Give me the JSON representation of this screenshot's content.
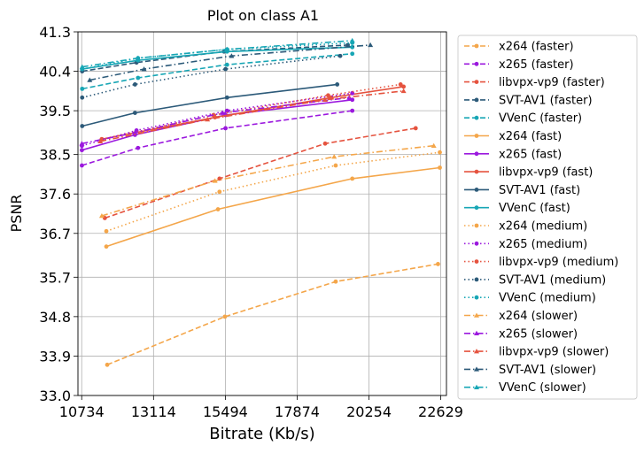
{
  "chart_data": {
    "type": "line",
    "title": "Plot on class A1",
    "xlabel": "Bitrate (Kb/s)",
    "ylabel": "PSNR",
    "xlim": [
      10610,
      22820
    ],
    "ylim": [
      33.0,
      41.3
    ],
    "xticks": [
      10734,
      13114,
      15494,
      17874,
      20254,
      22629
    ],
    "xtick_labels": [
      "10734",
      "13114",
      "15494",
      "17874",
      "20254",
      "22629"
    ],
    "yticks": [
      33.0,
      33.9,
      34.8,
      35.7,
      36.7,
      37.6,
      38.5,
      39.5,
      40.4,
      41.3
    ],
    "ytick_labels": [
      "33.0",
      "33.9",
      "34.8",
      "35.7",
      "36.7",
      "37.6",
      "38.5",
      "39.5",
      "40.4",
      "41.3"
    ],
    "grid": true,
    "legend_position": "outside-right",
    "colors": {
      "x264": "#f4a64a",
      "x265": "#9b18de",
      "libvpx-vp9": "#e5533f",
      "SVT-AV1": "#2c5a79",
      "VVenC": "#17a6b5"
    },
    "series": [
      {
        "name": "x264 (faster)",
        "codec": "x264",
        "style": "dashed",
        "marker": "circle",
        "x": [
          11580,
          15480,
          19150,
          22540
        ],
        "y": [
          33.7,
          34.8,
          35.6,
          36.0
        ]
      },
      {
        "name": "x265 (faster)",
        "codec": "x265",
        "style": "dashed",
        "marker": "circle",
        "x": [
          10740,
          12600,
          15500,
          19700
        ],
        "y": [
          38.25,
          38.65,
          39.1,
          39.5
        ]
      },
      {
        "name": "libvpx-vp9 (faster)",
        "codec": "libvpx-vp9",
        "style": "dashed",
        "marker": "circle",
        "x": [
          11500,
          15300,
          18800,
          21800
        ],
        "y": [
          37.05,
          37.95,
          38.75,
          39.1
        ]
      },
      {
        "name": "SVT-AV1 (faster)",
        "codec": "SVT-AV1",
        "style": "dashed",
        "marker": "circle",
        "x": [
          10750,
          12550,
          15450,
          19550
        ],
        "y": [
          40.4,
          40.6,
          40.85,
          41.0
        ]
      },
      {
        "name": "VVenC (faster)",
        "codec": "VVenC",
        "style": "dashed",
        "marker": "circle",
        "x": [
          10750,
          12600,
          15550,
          19700
        ],
        "y": [
          40.0,
          40.25,
          40.55,
          40.8
        ]
      },
      {
        "name": "x264 (fast)",
        "codec": "x264",
        "style": "solid",
        "marker": "circle",
        "x": [
          11550,
          15250,
          19700,
          22600
        ],
        "y": [
          36.4,
          37.25,
          37.95,
          38.2
        ]
      },
      {
        "name": "x265 (fast)",
        "codec": "x265",
        "style": "solid",
        "marker": "circle",
        "x": [
          10740,
          12500,
          15500,
          19700
        ],
        "y": [
          38.6,
          38.95,
          39.4,
          39.75
        ]
      },
      {
        "name": "libvpx-vp9 (fast)",
        "codec": "libvpx-vp9",
        "style": "solid",
        "marker": "circle",
        "x": [
          11400,
          15150,
          19000,
          21400
        ],
        "y": [
          38.85,
          39.35,
          39.8,
          40.05
        ]
      },
      {
        "name": "SVT-AV1 (fast)",
        "codec": "SVT-AV1",
        "style": "solid",
        "marker": "circle",
        "x": [
          10750,
          12500,
          15550,
          19200
        ],
        "y": [
          39.15,
          39.45,
          39.8,
          40.1
        ]
      },
      {
        "name": "VVenC (fast)",
        "codec": "VVenC",
        "style": "solid",
        "marker": "circle",
        "x": [
          10750,
          12600,
          15550,
          19700
        ],
        "y": [
          40.45,
          40.65,
          40.85,
          40.95
        ]
      },
      {
        "name": "x264 (medium)",
        "codec": "x264",
        "style": "dotted",
        "marker": "circle",
        "x": [
          11550,
          15300,
          19150,
          22600
        ],
        "y": [
          36.75,
          37.65,
          38.25,
          38.55
        ]
      },
      {
        "name": "x265 (medium)",
        "codec": "x265",
        "style": "dotted",
        "marker": "circle",
        "x": [
          10740,
          12550,
          15550,
          19700
        ],
        "y": [
          38.7,
          39.05,
          39.5,
          39.9
        ]
      },
      {
        "name": "libvpx-vp9 (medium)",
        "codec": "libvpx-vp9",
        "style": "dotted",
        "marker": "circle",
        "x": [
          11400,
          15100,
          18900,
          21300
        ],
        "y": [
          38.85,
          39.4,
          39.85,
          40.1
        ]
      },
      {
        "name": "SVT-AV1 (medium)",
        "codec": "SVT-AV1",
        "style": "dotted",
        "marker": "circle",
        "x": [
          10750,
          12500,
          15500,
          19300
        ],
        "y": [
          39.8,
          40.1,
          40.45,
          40.75
        ]
      },
      {
        "name": "VVenC (medium)",
        "codec": "VVenC",
        "style": "dotted",
        "marker": "circle",
        "x": [
          10750,
          12600,
          15550,
          19700
        ],
        "y": [
          40.45,
          40.7,
          40.9,
          41.05
        ]
      },
      {
        "name": "x264 (slower)",
        "codec": "x264",
        "style": "dashdot",
        "marker": "triangle",
        "x": [
          11400,
          15150,
          19100,
          22400
        ],
        "y": [
          37.1,
          37.9,
          38.45,
          38.7
        ]
      },
      {
        "name": "x265 (slower)",
        "codec": "x265",
        "style": "dashdot",
        "marker": "triangle",
        "x": [
          10740,
          12500,
          15400,
          19600
        ],
        "y": [
          38.75,
          39.0,
          39.45,
          39.8
        ]
      },
      {
        "name": "libvpx-vp9 (slower)",
        "codec": "libvpx-vp9",
        "style": "dashdot",
        "marker": "triangle",
        "x": [
          11350,
          14900,
          18800,
          21400
        ],
        "y": [
          38.8,
          39.3,
          39.75,
          39.95
        ]
      },
      {
        "name": "SVT-AV1 (slower)",
        "codec": "SVT-AV1",
        "style": "dashdot",
        "marker": "triangle",
        "x": [
          11000,
          12800,
          15700,
          20300
        ],
        "y": [
          40.2,
          40.45,
          40.75,
          41.0
        ]
      },
      {
        "name": "VVenC (slower)",
        "codec": "VVenC",
        "style": "dashdot",
        "marker": "triangle",
        "x": [
          10750,
          12600,
          15550,
          19700
        ],
        "y": [
          40.5,
          40.7,
          40.9,
          41.1
        ]
      }
    ]
  }
}
